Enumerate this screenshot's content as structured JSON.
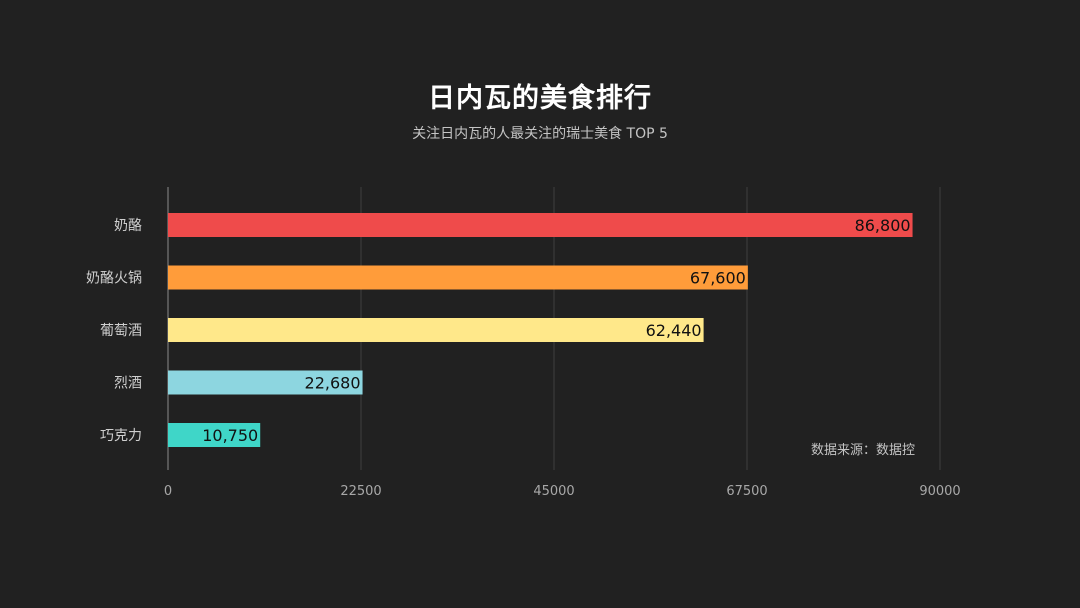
{
  "header": {
    "title": "日内瓦的美食排行",
    "subtitle": "关注日内瓦的人最关注的瑞士美食 TOP 5"
  },
  "source": {
    "label": "数据来源：",
    "value": "数据控"
  },
  "colors": {
    "background": "#212121",
    "grid": "#3f3f3f",
    "axis": "#8a8a8a",
    "category_text": "#cfcfcf",
    "tick_text": "#a8a8a8",
    "value_text": "#111111"
  },
  "chart_data": {
    "type": "bar",
    "orientation": "horizontal",
    "categories": [
      "奶酪",
      "奶酪火锅",
      "葡萄酒",
      "烈酒",
      "巧克力"
    ],
    "values": [
      86800,
      67600,
      62440,
      22680,
      10750
    ],
    "value_labels": [
      "86,800",
      "67,600",
      "62,440",
      "22,680",
      "10,750"
    ],
    "bar_colors": [
      "#ef4b4b",
      "#ff9c3a",
      "#ffe88a",
      "#8dd6e0",
      "#3fd6c8"
    ],
    "xlim": [
      0,
      90000
    ],
    "xticks": [
      "0",
      "22500",
      "45000",
      "67500",
      "90000"
    ],
    "xtick_values": [
      0,
      22500,
      45000,
      67500,
      90000
    ],
    "grid": true,
    "legend": "none"
  }
}
